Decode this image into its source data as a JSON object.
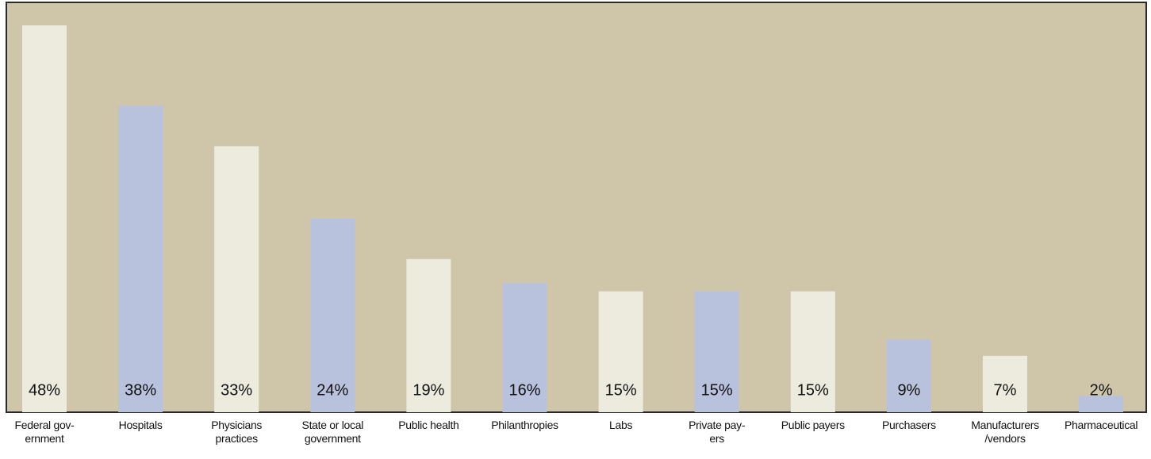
{
  "chart_data": {
    "type": "bar",
    "categories": [
      "Federal gov-\nernment",
      "Hospitals",
      "Physicians\npractices",
      "State or local\ngovernment",
      "Public health",
      "Philanthropies",
      "Labs",
      "Private pay-\ners",
      "Public payers",
      "Purchasers",
      "Manufacturers\n/vendors",
      "Pharmaceutical"
    ],
    "values": [
      48,
      38,
      33,
      24,
      19,
      16,
      15,
      15,
      15,
      9,
      7,
      2
    ],
    "value_labels": [
      "48%",
      "38%",
      "33%",
      "24%",
      "19%",
      "16%",
      "15%",
      "15%",
      "15%",
      "9%",
      "7%",
      "2%"
    ],
    "colors": [
      "#ecebde",
      "#b9c2dc",
      "#ecebde",
      "#b9c2dc",
      "#ecebde",
      "#b9c2dc",
      "#ecebde",
      "#b9c2dc",
      "#ecebde",
      "#b9c2dc",
      "#ecebde",
      "#b9c2dc"
    ],
    "background": "#cfc6a9"
  }
}
